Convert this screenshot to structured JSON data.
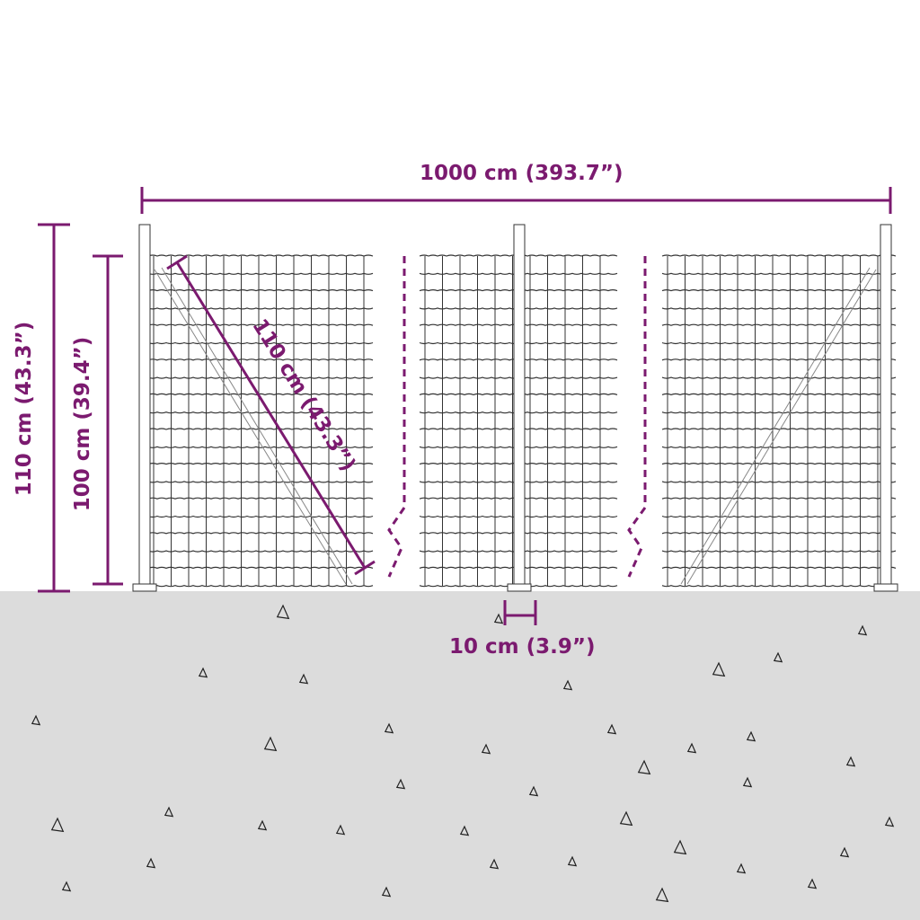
{
  "colors": {
    "accent": "#7b1a6f",
    "ground": "#dcdcdc",
    "fence": "#333333"
  },
  "dimensions": {
    "total_length": "1000 cm (393.7”)",
    "post_height": "110 cm (43.3”)",
    "mesh_height": "100 cm (39.4”)",
    "brace_length": "110 cm (43.3”)",
    "post_spacing": "10 cm (3.9”)"
  }
}
